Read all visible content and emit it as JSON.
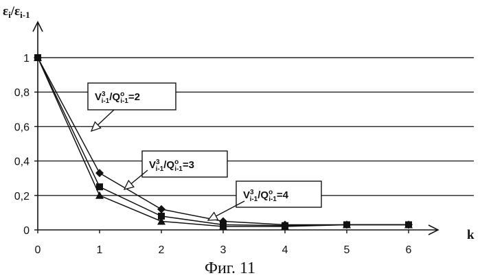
{
  "chart_data": {
    "type": "line",
    "title": "",
    "ylabel": "εi/εi-1",
    "xlabel": "k",
    "caption": "Фиг. 11",
    "x": [
      0,
      1,
      2,
      3,
      4,
      5,
      6
    ],
    "xlim": [
      0,
      6
    ],
    "ylim": [
      0,
      1
    ],
    "yticks": [
      "0",
      "0,2",
      "0,4",
      "0,6",
      "0,8",
      "1"
    ],
    "xticks": [
      "0",
      "1",
      "2",
      "3",
      "4",
      "5",
      "6"
    ],
    "grid": "horizontal",
    "series": [
      {
        "name": "V3i-1/Q0i-1=2",
        "marker": "diamond",
        "values": [
          1,
          0.33,
          0.12,
          0.05,
          0.03,
          0.03,
          0.03
        ]
      },
      {
        "name": "V3i-1/Q0i-1=3",
        "marker": "square",
        "values": [
          1,
          0.25,
          0.08,
          0.03,
          0.025,
          0.03,
          0.03
        ]
      },
      {
        "name": "V3i-1/Q0i-1=4",
        "marker": "triangle",
        "values": [
          1,
          0.2,
          0.05,
          0.02,
          0.02,
          0.03,
          0.03
        ]
      }
    ],
    "annotations": [
      {
        "main": "V",
        "sup": "3",
        "sub1": "i-1",
        "mid": "/Q",
        "sup2": "o",
        "sub2": "i-1",
        "tail": "=2"
      },
      {
        "main": "V",
        "sup": "3",
        "sub1": "i-1",
        "mid": "/Q",
        "sup2": "o",
        "sub2": "i-1",
        "tail": "=3"
      },
      {
        "main": "V",
        "sup": "3",
        "sub1": "i-1",
        "mid": "/Q",
        "sup2": "o",
        "sub2": "i-1",
        "tail": "=4"
      }
    ]
  }
}
